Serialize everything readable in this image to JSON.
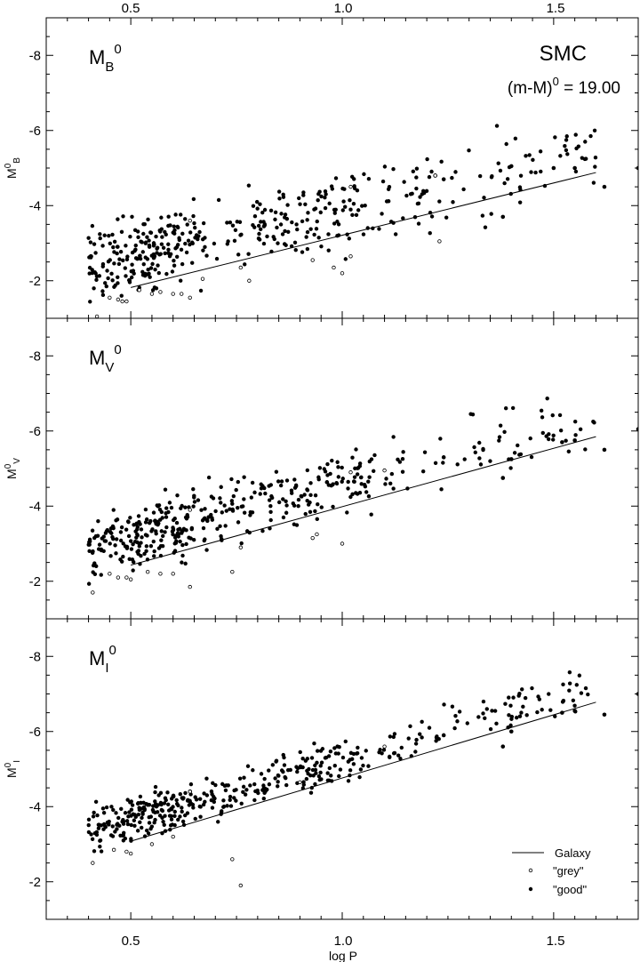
{
  "figure": {
    "target": "SMC",
    "modulus_label": "(m-M)",
    "modulus_sup": "0",
    "modulus_value": " = 19.00",
    "xlabel": "log P"
  },
  "legend": {
    "line_label": "Galaxy",
    "grey_label": "\"grey\"",
    "good_label": "\"good\""
  },
  "colors": {
    "ink": "#000000",
    "background": "#ffffff"
  },
  "chart_data": [
    {
      "type": "scatter",
      "band": "B",
      "label_main": "M",
      "label_sub": "B",
      "label_sup": "0",
      "ylabel_main": "M",
      "ylabel_sup": "0",
      "ylabel_sub": "B",
      "xlim": [
        0.3,
        1.7
      ],
      "ylim": [
        -1,
        -9
      ],
      "xticks": [
        0.5,
        1.0,
        1.5
      ],
      "xtick_labels": [
        "0.5",
        "1.0",
        "1.5"
      ],
      "yticks": [
        -2,
        -4,
        -6,
        -8
      ],
      "ytick_labels": [
        "-2",
        "-4",
        "-6",
        "-8"
      ],
      "galaxy_line": {
        "x": [
          0.5,
          1.6
        ],
        "y": [
          -1.82,
          -4.88
        ]
      },
      "scatter_params": {
        "slope": -2.6,
        "intercept": -0.97,
        "spread": 0.75,
        "offset": -0.35,
        "seed": 11
      },
      "anchor_points": [
        {
          "x": 1.7,
          "y": -5.0
        },
        {
          "x": 1.62,
          "y": -4.5
        },
        {
          "x": 1.55,
          "y": -5.0
        },
        {
          "x": 1.5,
          "y": -5.0
        },
        {
          "x": 1.4,
          "y": -5.05
        },
        {
          "x": 1.38,
          "y": -3.7
        },
        {
          "x": 1.24,
          "y": -4.7
        },
        {
          "x": 1.22,
          "y": -4.8
        }
      ],
      "grey_points": [
        {
          "x": 1.22,
          "y": -4.8
        },
        {
          "x": 1.23,
          "y": -3.05
        },
        {
          "x": 1.02,
          "y": -2.65
        },
        {
          "x": 1.0,
          "y": -2.2
        },
        {
          "x": 0.98,
          "y": -2.35
        },
        {
          "x": 0.93,
          "y": -2.55
        },
        {
          "x": 0.76,
          "y": -2.35
        },
        {
          "x": 0.67,
          "y": -2.05
        },
        {
          "x": 0.64,
          "y": -1.55
        },
        {
          "x": 0.62,
          "y": -1.65
        },
        {
          "x": 0.6,
          "y": -1.65
        },
        {
          "x": 0.57,
          "y": -1.7
        },
        {
          "x": 0.55,
          "y": -1.65
        },
        {
          "x": 0.52,
          "y": -1.75
        },
        {
          "x": 0.49,
          "y": -1.45
        },
        {
          "x": 0.48,
          "y": -1.45
        },
        {
          "x": 0.47,
          "y": -1.5
        },
        {
          "x": 0.45,
          "y": -1.55
        },
        {
          "x": 0.42,
          "y": -1.05
        },
        {
          "x": 1.02,
          "y": -4.5
        },
        {
          "x": 0.64,
          "y": -3.6
        },
        {
          "x": 0.78,
          "y": -2.0
        }
      ]
    },
    {
      "type": "scatter",
      "band": "V",
      "label_main": "M",
      "label_sub": "V",
      "label_sup": "0",
      "ylabel_main": "M",
      "ylabel_sup": "0",
      "ylabel_sub": "V",
      "xlim": [
        0.3,
        1.7
      ],
      "ylim": [
        -1,
        -9
      ],
      "xticks": [
        0.5,
        1.0,
        1.5
      ],
      "xtick_labels": [
        "0.5",
        "1.0",
        "1.5"
      ],
      "yticks": [
        -2,
        -4,
        -6,
        -8
      ],
      "ytick_labels": [
        "-2",
        "-4",
        "-6",
        "-8"
      ],
      "galaxy_line": {
        "x": [
          0.5,
          1.6
        ],
        "y": [
          -2.43,
          -5.85
        ]
      },
      "scatter_params": {
        "slope": -2.95,
        "intercept": -1.37,
        "spread": 0.6,
        "offset": -0.3,
        "seed": 23
      },
      "anchor_points": [
        {
          "x": 1.7,
          "y": -6.05
        },
        {
          "x": 1.62,
          "y": -5.5
        },
        {
          "x": 1.55,
          "y": -5.75
        },
        {
          "x": 1.52,
          "y": -5.7
        },
        {
          "x": 1.4,
          "y": -5.25
        },
        {
          "x": 1.38,
          "y": -4.75
        },
        {
          "x": 1.24,
          "y": -5.3
        }
      ],
      "grey_points": [
        {
          "x": 1.1,
          "y": -4.95
        },
        {
          "x": 1.02,
          "y": -4.9
        },
        {
          "x": 1.0,
          "y": -3.0
        },
        {
          "x": 0.94,
          "y": -3.25
        },
        {
          "x": 0.93,
          "y": -3.15
        },
        {
          "x": 0.76,
          "y": -2.9
        },
        {
          "x": 0.74,
          "y": -2.25
        },
        {
          "x": 0.64,
          "y": -1.85
        },
        {
          "x": 0.6,
          "y": -2.2
        },
        {
          "x": 0.57,
          "y": -2.2
        },
        {
          "x": 0.54,
          "y": -2.25
        },
        {
          "x": 0.5,
          "y": -2.05
        },
        {
          "x": 0.49,
          "y": -2.1
        },
        {
          "x": 0.47,
          "y": -2.1
        },
        {
          "x": 0.45,
          "y": -2.2
        },
        {
          "x": 0.41,
          "y": -1.7
        },
        {
          "x": 0.64,
          "y": -3.9
        }
      ]
    },
    {
      "type": "scatter",
      "band": "I",
      "label_main": "M",
      "label_sub": "I",
      "label_sup": "0",
      "ylabel_main": "M",
      "ylabel_sup": "0",
      "ylabel_sub": "I",
      "xlim": [
        0.3,
        1.7
      ],
      "ylim": [
        -1,
        -9
      ],
      "xticks": [
        0.5,
        1.0,
        1.5
      ],
      "xtick_labels": [
        "0.5",
        "1.0",
        "1.5"
      ],
      "yticks": [
        -2,
        -4,
        -6,
        -8
      ],
      "ytick_labels": [
        "-2",
        "-4",
        "-6",
        "-8"
      ],
      "galaxy_line": {
        "x": [
          0.5,
          1.6
        ],
        "y": [
          -3.08,
          -6.78
        ]
      },
      "scatter_params": {
        "slope": -3.2,
        "intercept": -1.8,
        "spread": 0.42,
        "offset": -0.22,
        "seed": 37
      },
      "anchor_points": [
        {
          "x": 1.7,
          "y": -7.0
        },
        {
          "x": 1.62,
          "y": -6.45
        },
        {
          "x": 1.55,
          "y": -6.55
        },
        {
          "x": 1.52,
          "y": -6.5
        },
        {
          "x": 1.4,
          "y": -6.0
        },
        {
          "x": 1.38,
          "y": -5.6
        },
        {
          "x": 1.24,
          "y": -5.9
        }
      ],
      "grey_points": [
        {
          "x": 1.1,
          "y": -5.6
        },
        {
          "x": 0.9,
          "y": -4.65
        },
        {
          "x": 0.76,
          "y": -1.9
        },
        {
          "x": 0.74,
          "y": -2.6
        },
        {
          "x": 0.64,
          "y": -4.4
        },
        {
          "x": 0.6,
          "y": -3.2
        },
        {
          "x": 0.55,
          "y": -3.0
        },
        {
          "x": 0.5,
          "y": -2.75
        },
        {
          "x": 0.49,
          "y": -2.8
        },
        {
          "x": 0.46,
          "y": -2.85
        },
        {
          "x": 0.41,
          "y": -2.5
        }
      ]
    }
  ]
}
